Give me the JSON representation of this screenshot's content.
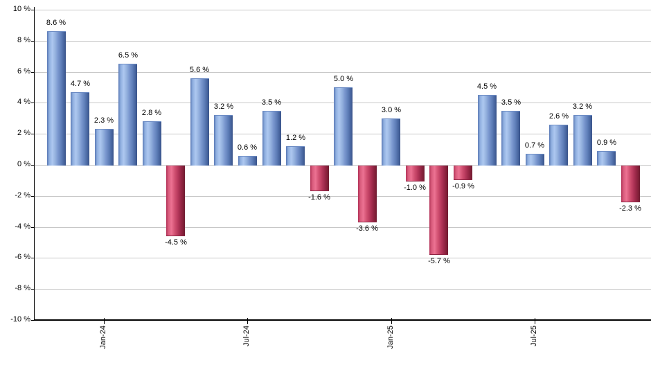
{
  "chart_data": {
    "type": "bar",
    "title": "",
    "xlabel": "",
    "ylabel": "",
    "unit": "%",
    "values": [
      8.6,
      4.7,
      2.3,
      6.5,
      2.8,
      -4.5,
      5.6,
      3.2,
      0.6,
      3.5,
      1.2,
      -1.6,
      5.0,
      -3.6,
      3.0,
      -1.0,
      -5.7,
      -0.9,
      4.5,
      3.5,
      0.7,
      2.6,
      3.2,
      0.9,
      -2.3
    ],
    "bar_labels": [
      "8.6 %",
      "4.7 %",
      "2.3 %",
      "6.5 %",
      "2.8 %",
      "-4.5 %",
      "5.6 %",
      "3.2 %",
      "0.6 %",
      "3.5 %",
      "1.2 %",
      "-1.6 %",
      "5.0 %",
      "-3.6 %",
      "3.0 %",
      "-1.0 %",
      "-5.7 %",
      "-0.9 %",
      "4.5 %",
      "3.5 %",
      "0.7 %",
      "2.6 %",
      "3.2 %",
      "0.9 %",
      "-2.3 %"
    ],
    "x_tick_labels": [
      "Jan-24",
      "Jul-24",
      "Jan-25",
      "Jul-25"
    ],
    "x_tick_bar_indices": [
      2,
      8,
      14,
      20
    ],
    "y_tick_labels": [
      "10 %",
      "8 %",
      "6 %",
      "4 %",
      "2 %",
      "0 %",
      "-2 %",
      "-4 %",
      "-6 %",
      "-8 %",
      "-10 %"
    ],
    "y_tick_values": [
      10,
      8,
      6,
      4,
      2,
      0,
      -2,
      -4,
      -6,
      -8,
      -10
    ],
    "ylim": [
      -10,
      10
    ],
    "grid": true,
    "legend": "none",
    "colors": {
      "positive_bar_light": "#aec8f0",
      "positive_bar_dark": "#3a5389",
      "negative_bar_light": "#ec7292",
      "negative_bar_dark": "#6f1c33",
      "gridline": "#c6c6c6",
      "axis": "#000000",
      "label_text": "#000000",
      "background": "#ffffff"
    }
  }
}
